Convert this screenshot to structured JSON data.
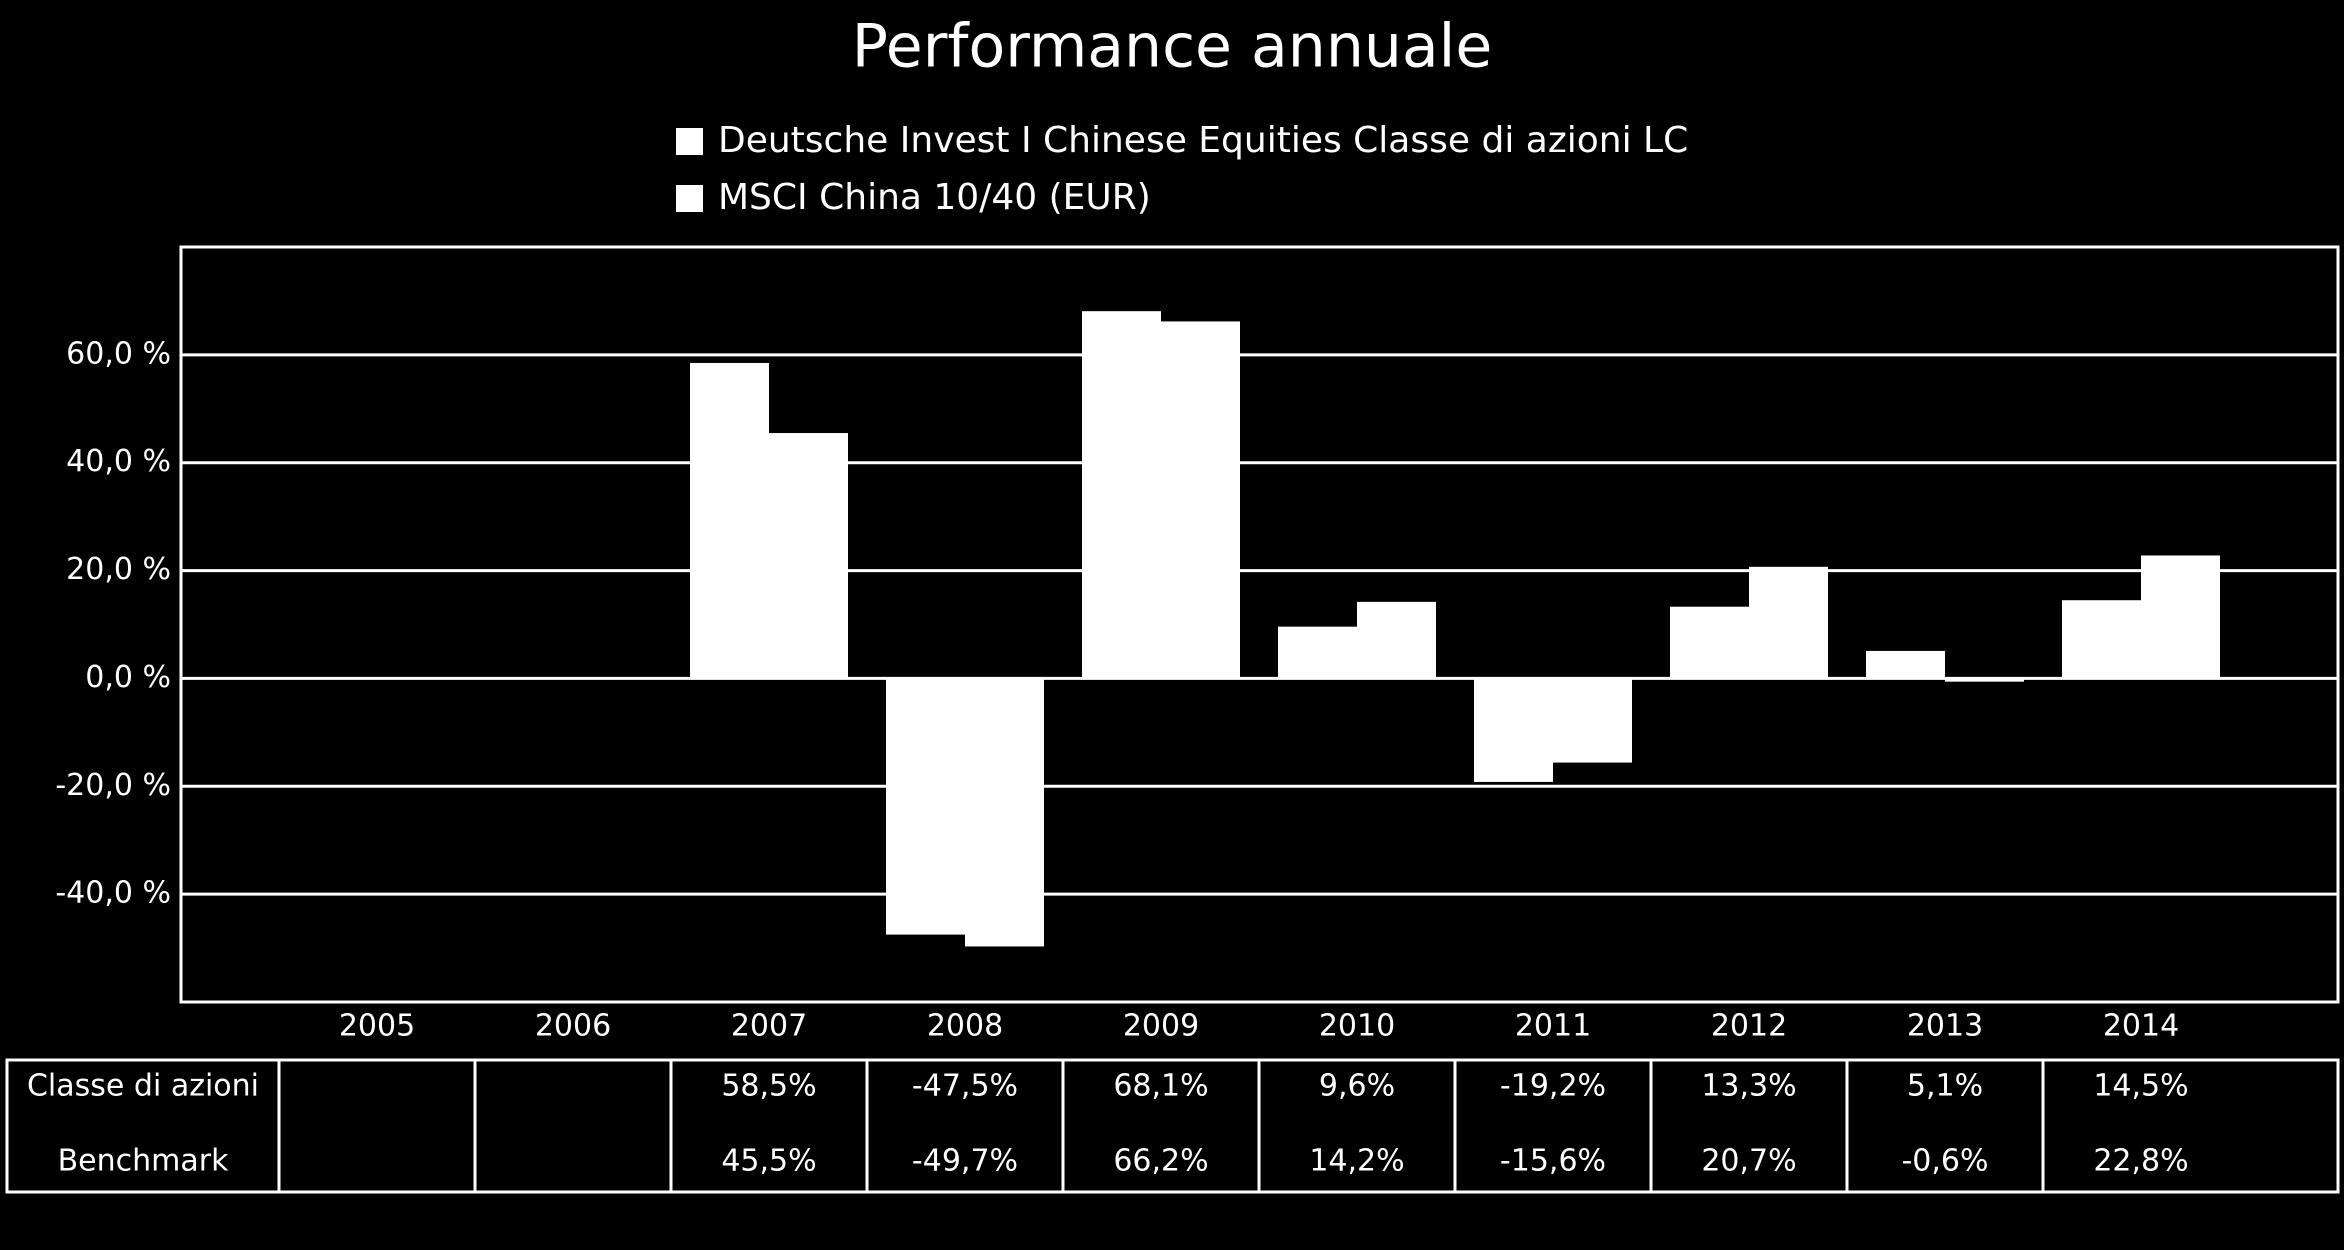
{
  "chart_data": {
    "type": "bar",
    "title": "Performance annuale",
    "categories": [
      "2005",
      "2006",
      "2007",
      "2008",
      "2009",
      "2010",
      "2011",
      "2012",
      "2013",
      "2014"
    ],
    "series": [
      {
        "name": "Deutsche Invest I Chinese Equities Classe di azioni LC",
        "color": "#ffffff",
        "values": [
          null,
          null,
          58.5,
          -47.5,
          68.1,
          9.6,
          -19.2,
          13.3,
          5.1,
          14.5
        ],
        "value_labels": [
          null,
          null,
          "58,5%",
          "-47,5%",
          "68,1%",
          "9,6%",
          "-19,2%",
          "13,3%",
          "5,1%",
          "14,5%"
        ]
      },
      {
        "name": "MSCI China 10/40 (EUR)",
        "color": "#ffffff",
        "values": [
          null,
          null,
          45.5,
          -49.7,
          66.2,
          14.2,
          -15.6,
          20.7,
          -0.6,
          22.8
        ],
        "value_labels": [
          null,
          null,
          "45,5%",
          "-49,7%",
          "66,2%",
          "14,2%",
          "-15,6%",
          "20,7%",
          "-0,6%",
          "22,8%"
        ]
      }
    ],
    "table_row_labels": [
      "Classe di azioni",
      "Benchmark"
    ],
    "ylim": [
      -60,
      80
    ],
    "yticks": [
      {
        "value": -40,
        "label": "-40,0 %"
      },
      {
        "value": -20,
        "label": "-20,0 %"
      },
      {
        "value": 0,
        "label": "0,0 %"
      },
      {
        "value": 20,
        "label": "20,0 %"
      },
      {
        "value": 40,
        "label": "40,0 %"
      },
      {
        "value": 60,
        "label": "60,0 %"
      }
    ],
    "grid": true
  }
}
